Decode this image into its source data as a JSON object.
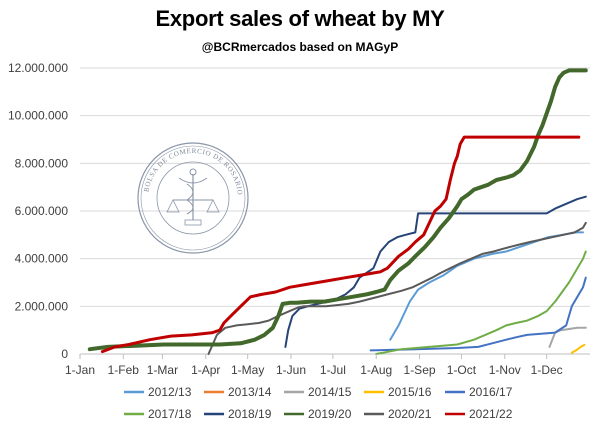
{
  "chart_data": {
    "type": "line",
    "title": "Export sales of wheat by MY",
    "subtitle": "@BCRmercados based on MAGyP",
    "xlabel": "",
    "ylabel": "",
    "x_ticks": [
      "1-Jan",
      "1-Feb",
      "1-Mar",
      "1-Apr",
      "1-May",
      "1-Jun",
      "1-Jul",
      "1-Aug",
      "1-Sep",
      "1-Oct",
      "1-Nov",
      "1-Dec"
    ],
    "x_tick_days": [
      0,
      31,
      59,
      90,
      120,
      151,
      181,
      212,
      243,
      273,
      304,
      334
    ],
    "xlim": [
      0,
      365
    ],
    "y_ticks": [
      "0",
      "2.000.000",
      "4.000.000",
      "6.000.000",
      "8.000.000",
      "10.000.000",
      "12.000.000"
    ],
    "ylim": [
      0,
      12000000
    ],
    "grid": "horizontal",
    "legend_position": "bottom",
    "series": [
      {
        "name": "2012/13",
        "color": "#5b9bd5",
        "width": 2,
        "x": [
          222,
          228,
          232,
          236,
          242,
          250,
          260,
          270,
          282,
          295,
          305,
          315,
          325,
          335,
          345,
          355,
          360
        ],
        "y": [
          600000,
          1200000,
          1700000,
          2200000,
          2700000,
          3000000,
          3300000,
          3700000,
          4000000,
          4200000,
          4300000,
          4500000,
          4700000,
          4900000,
          5000000,
          5100000,
          5100000
        ]
      },
      {
        "name": "2013/14",
        "color": "#ed7d31",
        "width": 2,
        "x": [],
        "y": []
      },
      {
        "name": "2014/15",
        "color": "#a5a5a5",
        "width": 2,
        "x": [
          336,
          338,
          340,
          344,
          350,
          356,
          362
        ],
        "y": [
          300000,
          600000,
          900000,
          1000000,
          1050000,
          1100000,
          1100000
        ]
      },
      {
        "name": "2015/16",
        "color": "#ffc000",
        "width": 2,
        "x": [
          352,
          355,
          358,
          361
        ],
        "y": [
          50000,
          150000,
          280000,
          380000
        ]
      },
      {
        "name": "2016/17",
        "color": "#4472c4",
        "width": 2,
        "x": [
          208,
          240,
          270,
          285,
          295,
          305,
          312,
          320,
          330,
          340,
          348,
          352,
          356,
          360,
          362
        ],
        "y": [
          150000,
          200000,
          250000,
          300000,
          450000,
          600000,
          700000,
          800000,
          850000,
          900000,
          1200000,
          2000000,
          2400000,
          2800000,
          3200000
        ]
      },
      {
        "name": "2017/18",
        "color": "#70ad47",
        "width": 2,
        "x": [
          212,
          230,
          250,
          270,
          282,
          290,
          298,
          305,
          312,
          320,
          328,
          334,
          340,
          345,
          350,
          355,
          360,
          362
        ],
        "y": [
          0,
          200000,
          300000,
          400000,
          600000,
          800000,
          1000000,
          1200000,
          1300000,
          1400000,
          1600000,
          1800000,
          2200000,
          2600000,
          3000000,
          3500000,
          4000000,
          4300000
        ]
      },
      {
        "name": "2018/19",
        "color": "#264478",
        "width": 2,
        "x": [
          147,
          149,
          152,
          157,
          163,
          170,
          177,
          183,
          190,
          196,
          200,
          205,
          210,
          215,
          221,
          227,
          233,
          240,
          242,
          250,
          280,
          300,
          334,
          340,
          348,
          356,
          362
        ],
        "y": [
          300000,
          1000000,
          1600000,
          1900000,
          2000000,
          2100000,
          2200000,
          2300000,
          2500000,
          2800000,
          3200000,
          3400000,
          3600000,
          4300000,
          4700000,
          4900000,
          5000000,
          5100000,
          5900000,
          5900000,
          5900000,
          5900000,
          5900000,
          6100000,
          6300000,
          6500000,
          6600000
        ]
      },
      {
        "name": "2019/20",
        "color": "#43682b",
        "width": 4,
        "x": [
          7,
          20,
          40,
          60,
          80,
          100,
          115,
          125,
          132,
          138,
          142,
          145,
          150,
          155,
          165,
          175,
          185,
          195,
          205,
          212,
          215,
          218,
          222,
          228,
          235,
          240,
          247,
          253,
          258,
          264,
          270,
          273,
          278,
          282,
          287,
          292,
          298,
          305,
          310,
          315,
          320,
          325,
          328,
          331,
          334,
          337,
          340,
          343,
          346,
          350,
          356,
          362
        ],
        "y": [
          200000,
          300000,
          350000,
          400000,
          400000,
          400000,
          450000,
          600000,
          800000,
          1100000,
          1600000,
          2100000,
          2150000,
          2150000,
          2200000,
          2200000,
          2300000,
          2400000,
          2500000,
          2600000,
          2650000,
          2700000,
          3100000,
          3500000,
          3800000,
          4100000,
          4500000,
          4900000,
          5300000,
          5700000,
          6200000,
          6500000,
          6700000,
          6900000,
          7000000,
          7100000,
          7300000,
          7400000,
          7500000,
          7700000,
          8100000,
          8700000,
          9200000,
          9600000,
          10100000,
          10600000,
          11200000,
          11600000,
          11800000,
          11900000,
          11900000,
          11900000
        ]
      },
      {
        "name": "2020/21",
        "color": "#5a5a5a",
        "width": 2,
        "x": [
          92,
          95,
          98,
          104,
          112,
          120,
          128,
          135,
          142,
          150,
          156,
          160,
          168,
          176,
          184,
          192,
          200,
          210,
          220,
          230,
          238,
          245,
          252,
          258,
          265,
          272,
          280,
          288,
          296,
          302,
          308,
          315,
          322,
          330,
          338,
          346,
          354,
          360,
          362
        ],
        "y": [
          0,
          400000,
          800000,
          1100000,
          1200000,
          1250000,
          1300000,
          1400000,
          1600000,
          1800000,
          1950000,
          2000000,
          2000000,
          2000000,
          2050000,
          2100000,
          2200000,
          2350000,
          2500000,
          2650000,
          2800000,
          3000000,
          3200000,
          3400000,
          3600000,
          3800000,
          4000000,
          4200000,
          4300000,
          4400000,
          4500000,
          4600000,
          4700000,
          4800000,
          4900000,
          5000000,
          5100000,
          5300000,
          5500000
        ]
      },
      {
        "name": "2021/22",
        "color": "#c00000",
        "width": 3,
        "x": [
          16,
          25,
          35,
          50,
          65,
          80,
          95,
          100,
          103,
          108,
          115,
          122,
          130,
          140,
          150,
          160,
          170,
          180,
          190,
          200,
          210,
          215,
          220,
          228,
          235,
          240,
          246,
          250,
          254,
          258,
          262,
          265,
          268,
          270,
          272,
          275,
          280,
          290,
          300,
          320,
          340,
          357
        ],
        "y": [
          100000,
          300000,
          400000,
          600000,
          750000,
          800000,
          900000,
          1000000,
          1300000,
          1600000,
          2000000,
          2400000,
          2500000,
          2600000,
          2800000,
          2900000,
          3000000,
          3100000,
          3200000,
          3300000,
          3400000,
          3450000,
          3600000,
          4100000,
          4400000,
          4700000,
          5000000,
          5500000,
          6000000,
          6200000,
          6500000,
          7300000,
          8000000,
          8300000,
          8800000,
          9100000,
          9100000,
          9100000,
          9100000,
          9100000,
          9100000,
          9100000
        ]
      }
    ]
  }
}
